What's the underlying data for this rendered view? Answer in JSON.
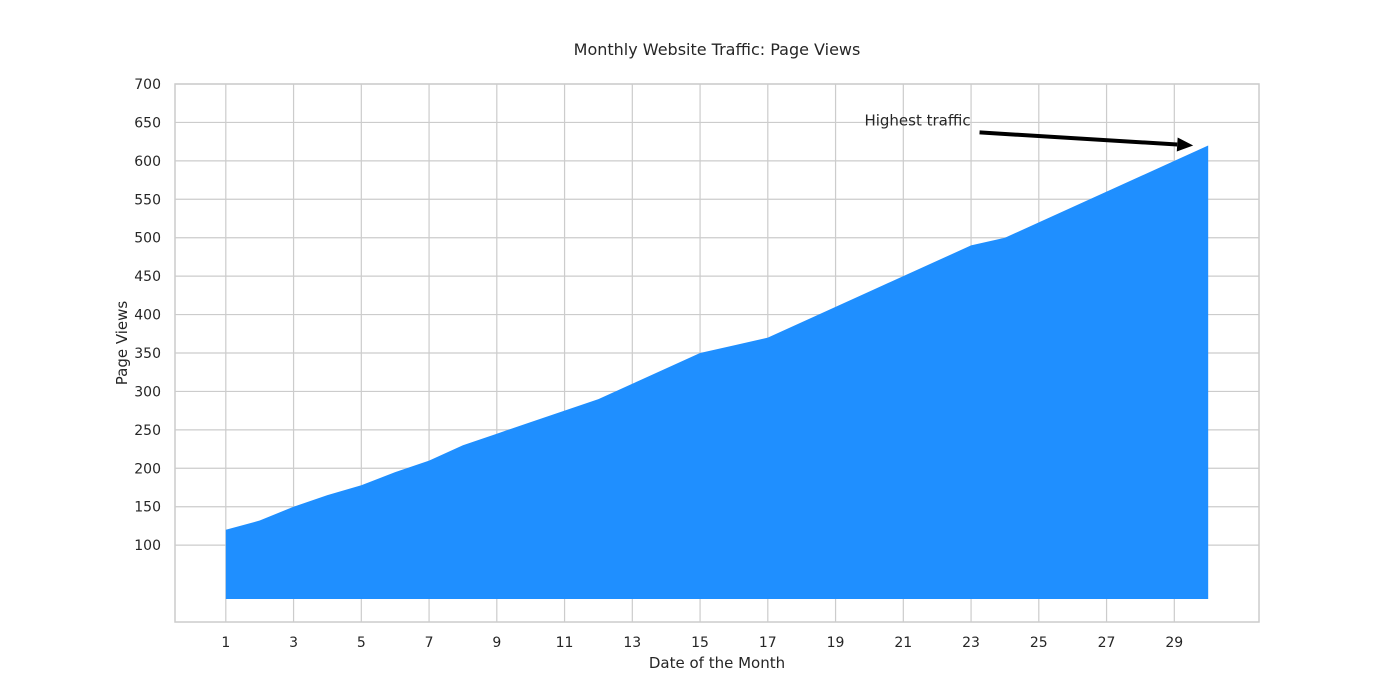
{
  "chart_data": {
    "type": "area",
    "title": "Monthly Website Traffic: Page Views",
    "xlabel": "Date of the Month",
    "ylabel": "Page Views",
    "x": [
      1,
      2,
      3,
      4,
      5,
      6,
      7,
      8,
      9,
      10,
      11,
      12,
      13,
      14,
      15,
      16,
      17,
      18,
      19,
      20,
      21,
      22,
      23,
      24,
      25,
      26,
      27,
      28,
      29,
      30
    ],
    "series": [
      {
        "values": [
          120,
          132,
          150,
          165,
          178,
          195,
          210,
          230,
          245,
          260,
          275,
          290,
          310,
          330,
          350,
          360,
          370,
          390,
          410,
          430,
          450,
          470,
          490,
          500,
          520,
          540,
          560,
          580,
          600,
          620
        ],
        "color": "#1f8fff"
      }
    ],
    "xlim": [
      -0.5,
      31.5
    ],
    "ylim": [
      0,
      700
    ],
    "x_ticks": [
      1,
      3,
      5,
      7,
      9,
      11,
      13,
      15,
      17,
      19,
      21,
      23,
      25,
      27,
      29
    ],
    "y_ticks": [
      100,
      150,
      200,
      250,
      300,
      350,
      400,
      450,
      500,
      550,
      600,
      650,
      700
    ],
    "area_baseline": 30,
    "grid": true,
    "annotation": {
      "text": "Highest traffic",
      "text_x": 20,
      "text_y": 650,
      "arrow_from_x": 23.25,
      "arrow_from_y": 637,
      "arrow_to_x": 30,
      "arrow_to_y": 620
    }
  }
}
